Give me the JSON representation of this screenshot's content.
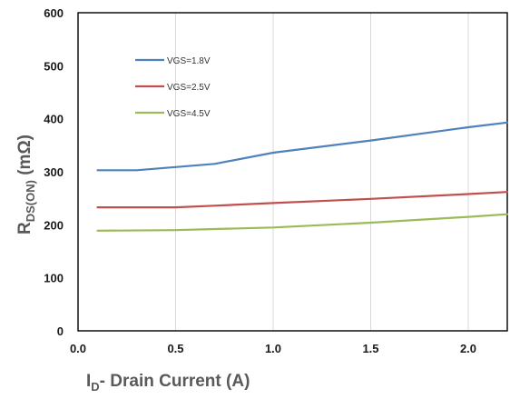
{
  "chart_data": {
    "type": "line",
    "xlabel": {
      "main": "I",
      "sub": "D",
      "rest": "- Drain Current (A)"
    },
    "ylabel": {
      "main": "R",
      "sub": "DS(ON)",
      "rest": " (mΩ)"
    },
    "xlim": [
      0,
      2.2
    ],
    "ylim": [
      0,
      600
    ],
    "x_ticks": [
      0.0,
      0.5,
      1.0,
      1.5,
      2.0
    ],
    "x_tick_labels": [
      "0.0",
      "0.5",
      "1.0",
      "1.5",
      "2.0"
    ],
    "y_ticks": [
      0,
      100,
      200,
      300,
      400,
      500,
      600
    ],
    "y_tick_labels": [
      "0",
      "100",
      "200",
      "300",
      "400",
      "500",
      "600"
    ],
    "grid": "vertical",
    "legend": "top-left",
    "series": [
      {
        "name": "VGS=1.8V",
        "color": "#4f81bd",
        "points": [
          [
            0.1,
            303
          ],
          [
            0.3,
            303
          ],
          [
            0.5,
            309
          ],
          [
            0.7,
            315
          ],
          [
            1.0,
            336
          ],
          [
            1.5,
            359
          ],
          [
            2.0,
            384
          ],
          [
            2.2,
            393
          ]
        ]
      },
      {
        "name": "VGS=2.5V",
        "color": "#c0504d",
        "points": [
          [
            0.1,
            233
          ],
          [
            0.5,
            233
          ],
          [
            0.7,
            236
          ],
          [
            1.0,
            241
          ],
          [
            1.5,
            249
          ],
          [
            2.0,
            258
          ],
          [
            2.2,
            262
          ]
        ]
      },
      {
        "name": "VGS=4.5V",
        "color": "#9bbb59",
        "points": [
          [
            0.1,
            189
          ],
          [
            0.5,
            190
          ],
          [
            0.7,
            192
          ],
          [
            1.0,
            195
          ],
          [
            1.5,
            204
          ],
          [
            2.0,
            215
          ],
          [
            2.2,
            220
          ]
        ]
      }
    ]
  }
}
